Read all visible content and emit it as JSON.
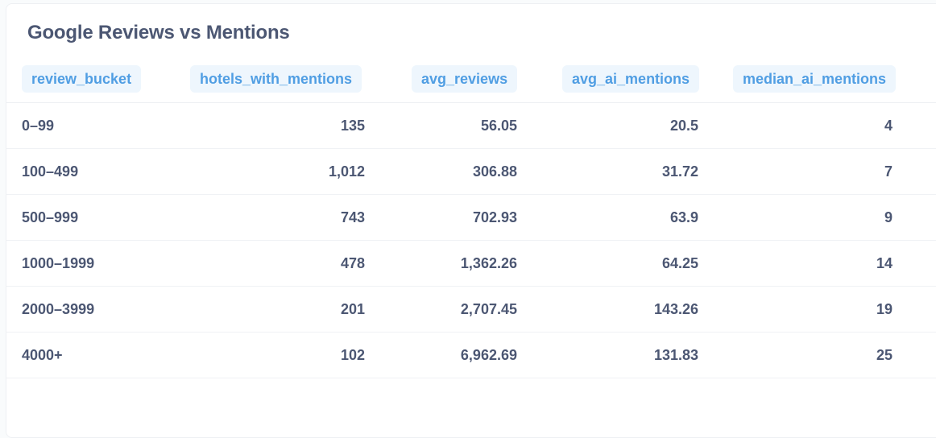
{
  "title": "Google Reviews vs Mentions",
  "columns": [
    "review_bucket",
    "hotels_with_mentions",
    "avg_reviews",
    "avg_ai_mentions",
    "median_ai_mentions"
  ],
  "rows": [
    [
      "0–99",
      "135",
      "56.05",
      "20.5",
      "4"
    ],
    [
      "100–499",
      "1,012",
      "306.88",
      "31.72",
      "7"
    ],
    [
      "500–999",
      "743",
      "702.93",
      "63.9",
      "9"
    ],
    [
      "1000–1999",
      "478",
      "1,362.26",
      "64.25",
      "14"
    ],
    [
      "2000–3999",
      "201",
      "2,707.45",
      "143.26",
      "19"
    ],
    [
      "4000+",
      "102",
      "6,962.69",
      "131.83",
      "25"
    ]
  ],
  "colors": {
    "header_text": "#509ee3",
    "header_bg": "#eef6fd",
    "body_text": "#4c5773"
  }
}
